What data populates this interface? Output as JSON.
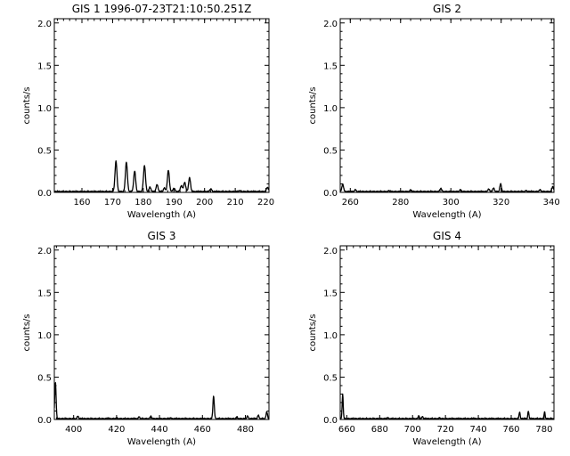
{
  "chart_data": [
    {
      "type": "line",
      "title": "GIS 1 1996-07-23T21:10:50.251Z",
      "xlabel": "Wavelength (A)",
      "ylabel": "counts/s",
      "xlim": [
        151,
        221
      ],
      "ylim": [
        0,
        2.05
      ],
      "xticks": [
        160,
        170,
        180,
        190,
        200,
        210,
        220
      ],
      "yticks": [
        0.0,
        0.5,
        1.0,
        1.5,
        2.0
      ],
      "baseline": 0.01,
      "peaks": [
        {
          "x": 171.1,
          "y": 0.37
        },
        {
          "x": 174.5,
          "y": 0.36
        },
        {
          "x": 177.2,
          "y": 0.25
        },
        {
          "x": 180.4,
          "y": 0.32
        },
        {
          "x": 182.2,
          "y": 0.06
        },
        {
          "x": 184.5,
          "y": 0.09
        },
        {
          "x": 186.9,
          "y": 0.05
        },
        {
          "x": 188.2,
          "y": 0.26
        },
        {
          "x": 190.0,
          "y": 0.05
        },
        {
          "x": 192.4,
          "y": 0.08
        },
        {
          "x": 193.5,
          "y": 0.12
        },
        {
          "x": 195.1,
          "y": 0.17
        },
        {
          "x": 202.0,
          "y": 0.04
        },
        {
          "x": 211.3,
          "y": 0.02
        },
        {
          "x": 220.5,
          "y": 0.06
        }
      ]
    },
    {
      "type": "line",
      "title": "GIS 2",
      "xlabel": "Wavelength (A)",
      "ylabel": "counts/s",
      "xlim": [
        256,
        341
      ],
      "ylim": [
        0,
        2.05
      ],
      "xticks": [
        260,
        280,
        300,
        320,
        340
      ],
      "yticks": [
        0.0,
        0.5,
        1.0,
        1.5,
        2.0
      ],
      "baseline": 0.01,
      "peaks": [
        {
          "x": 257.0,
          "y": 0.1
        },
        {
          "x": 262.0,
          "y": 0.03
        },
        {
          "x": 275.5,
          "y": 0.02
        },
        {
          "x": 284.1,
          "y": 0.03
        },
        {
          "x": 296.0,
          "y": 0.05
        },
        {
          "x": 303.8,
          "y": 0.03
        },
        {
          "x": 315.0,
          "y": 0.04
        },
        {
          "x": 317.0,
          "y": 0.05
        },
        {
          "x": 319.8,
          "y": 0.1
        },
        {
          "x": 330.0,
          "y": 0.02
        },
        {
          "x": 335.4,
          "y": 0.03
        },
        {
          "x": 340.5,
          "y": 0.07
        }
      ]
    },
    {
      "type": "line",
      "title": "GIS 3",
      "xlabel": "Wavelength (A)",
      "ylabel": "counts/s",
      "xlim": [
        391,
        491
      ],
      "ylim": [
        0,
        2.05
      ],
      "xticks": [
        400,
        420,
        440,
        460,
        480
      ],
      "yticks": [
        0.0,
        0.5,
        1.0,
        1.5,
        2.0
      ],
      "baseline": 0.01,
      "peaks": [
        {
          "x": 391.5,
          "y": 0.44
        },
        {
          "x": 402.0,
          "y": 0.04
        },
        {
          "x": 416.0,
          "y": 0.02
        },
        {
          "x": 420.0,
          "y": 0.02
        },
        {
          "x": 430.5,
          "y": 0.03
        },
        {
          "x": 436.0,
          "y": 0.04
        },
        {
          "x": 445.0,
          "y": 0.02
        },
        {
          "x": 465.2,
          "y": 0.28
        },
        {
          "x": 476.0,
          "y": 0.03
        },
        {
          "x": 481.0,
          "y": 0.04
        },
        {
          "x": 486.0,
          "y": 0.05
        },
        {
          "x": 490.0,
          "y": 0.09
        }
      ]
    },
    {
      "type": "line",
      "title": "GIS 4",
      "xlabel": "Wavelength (A)",
      "ylabel": "counts/s",
      "xlim": [
        656,
        786
      ],
      "ylim": [
        0,
        2.05
      ],
      "xticks": [
        660,
        680,
        700,
        720,
        740,
        760,
        780
      ],
      "yticks": [
        0.0,
        0.5,
        1.0,
        1.5,
        2.0
      ],
      "baseline": 0.01,
      "peaks": [
        {
          "x": 657.5,
          "y": 0.3
        },
        {
          "x": 685.0,
          "y": 0.02
        },
        {
          "x": 703.8,
          "y": 0.05
        },
        {
          "x": 706.0,
          "y": 0.04
        },
        {
          "x": 716.5,
          "y": 0.02
        },
        {
          "x": 737.0,
          "y": 0.02
        },
        {
          "x": 765.1,
          "y": 0.09
        },
        {
          "x": 770.4,
          "y": 0.1
        },
        {
          "x": 780.3,
          "y": 0.09
        }
      ]
    }
  ]
}
